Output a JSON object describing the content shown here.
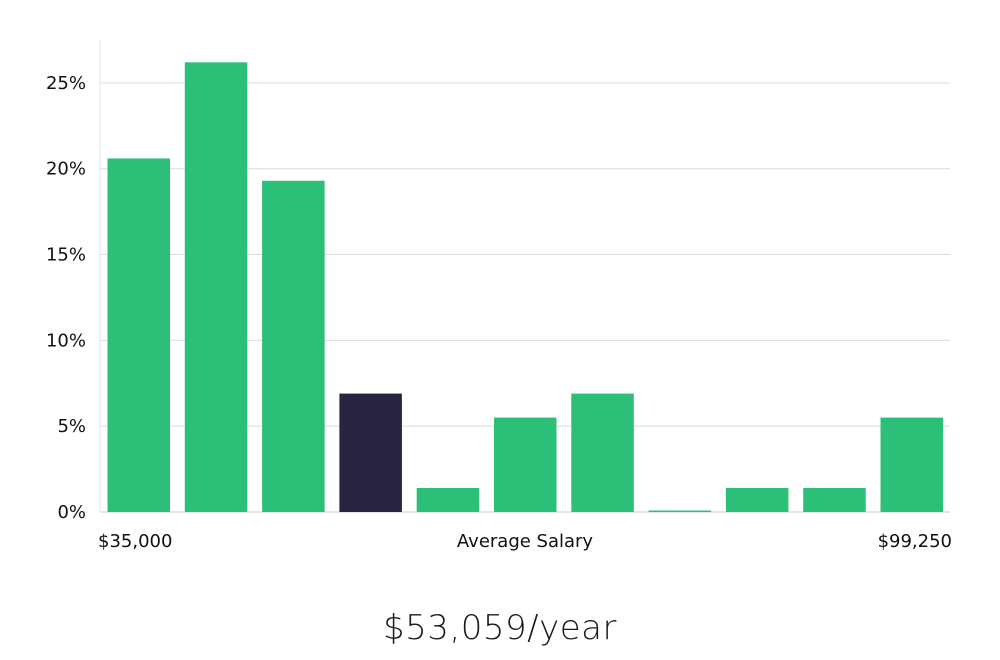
{
  "chart_data": {
    "type": "bar",
    "categories": [
      "1",
      "2",
      "3",
      "4",
      "5",
      "6",
      "7",
      "8",
      "9",
      "10",
      "11"
    ],
    "values": [
      20.6,
      26.2,
      19.3,
      6.9,
      1.4,
      5.5,
      6.9,
      0.0,
      1.4,
      1.4,
      5.5
    ],
    "highlight_index": 3,
    "ylim": [
      0,
      27.5
    ],
    "yticks": [
      0,
      5,
      10,
      15,
      20,
      25
    ],
    "ytick_labels": [
      "0%",
      "5%",
      "10%",
      "15%",
      "20%",
      "25%"
    ],
    "xlabel": "Average Salary",
    "x_min_label": "$35,000",
    "x_max_label": "$99,250",
    "grid": true,
    "colors": {
      "bar": "#2bbf78",
      "highlight": "#28243f",
      "grid": "#dddddd",
      "axis": "#e3e3e3"
    }
  },
  "summary": {
    "value": "$53,059/year"
  }
}
